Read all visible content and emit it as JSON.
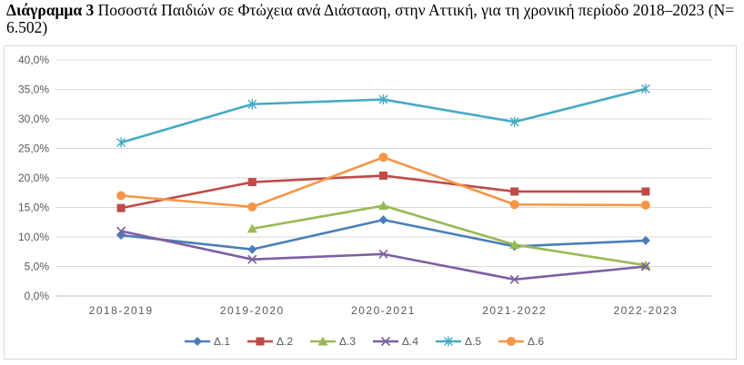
{
  "caption": {
    "lead": "Διάγραμμα 3",
    "text": " Ποσοστά Παιδιών σε Φτώχεια ανά Διάσταση, στην Αττική, για τη χρονική περίοδο 2018–2023 (N= 6.502)"
  },
  "chart_data": {
    "type": "line",
    "categories": [
      "2018-2019",
      "2019-2020",
      "2020-2021",
      "2021-2022",
      "2022-2023"
    ],
    "y_ticks": [
      "0,0%",
      "5,0%",
      "10,0%",
      "15,0%",
      "20,0%",
      "25,0%",
      "30,0%",
      "35,0%",
      "40,0%"
    ],
    "ylim": [
      0,
      40
    ],
    "grid": true,
    "legend_position": "bottom",
    "series": [
      {
        "name": "Δ.1",
        "color": "#4a7ebb",
        "marker": "diamond",
        "values": [
          10.3,
          7.9,
          12.9,
          8.4,
          9.4
        ]
      },
      {
        "name": "Δ.2",
        "color": "#be4b48",
        "marker": "square",
        "values": [
          14.9,
          19.3,
          20.4,
          17.7,
          17.7
        ]
      },
      {
        "name": "Δ.3",
        "color": "#98b954",
        "marker": "triangle",
        "values": [
          null,
          11.4,
          15.3,
          8.7,
          5.2
        ]
      },
      {
        "name": "Δ.4",
        "color": "#7d60a0",
        "marker": "x",
        "values": [
          11.0,
          6.2,
          7.1,
          2.8,
          5.0
        ]
      },
      {
        "name": "Δ.5",
        "color": "#46aac4",
        "marker": "star",
        "values": [
          26.0,
          32.5,
          33.3,
          29.5,
          35.1
        ]
      },
      {
        "name": "Δ.6",
        "color": "#f79646",
        "marker": "circle",
        "values": [
          17.0,
          15.1,
          23.5,
          15.5,
          15.4
        ]
      }
    ]
  }
}
